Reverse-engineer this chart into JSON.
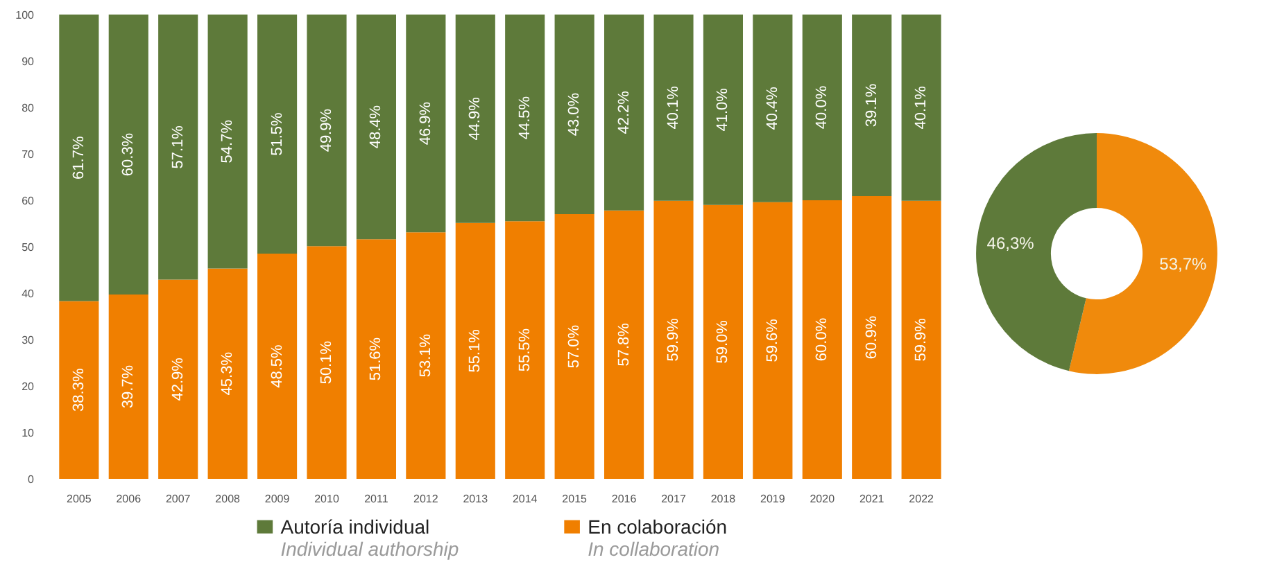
{
  "chart_data": [
    {
      "type": "bar",
      "stacked": true,
      "legend": "bottom",
      "grid": false,
      "ylim": [
        0,
        100
      ],
      "yticks": [
        0,
        10,
        20,
        30,
        40,
        50,
        60,
        70,
        80,
        90,
        100
      ],
      "categories": [
        "2005",
        "2006",
        "2007",
        "2008",
        "2009",
        "2010",
        "2011",
        "2012",
        "2013",
        "2014",
        "2015",
        "2016",
        "2017",
        "2018",
        "2019",
        "2020",
        "2021",
        "2022"
      ],
      "series": [
        {
          "name": "En colaboración\nIn collaboration",
          "color": "#f07f00",
          "values": [
            38.3,
            39.7,
            42.9,
            45.3,
            48.5,
            50.1,
            51.6,
            53.1,
            55.1,
            55.5,
            57.0,
            57.8,
            59.9,
            59.0,
            59.6,
            60.0,
            60.9,
            59.9
          ],
          "value_labels": [
            "38.3%",
            "39.7%",
            "42.9%",
            "45.3%",
            "48.5%",
            "50.1%",
            "51.6%",
            "53.1%",
            "55.1%",
            "55.5%",
            "57.0%",
            "57.8%",
            "59.9%",
            "59.0%",
            "59.6%",
            "60.0%",
            "60.9%",
            "59.9%"
          ]
        },
        {
          "name": "Autoría individual\nIndividual authorship",
          "color": "#5e7a3a",
          "values": [
            61.7,
            60.3,
            57.1,
            54.7,
            51.5,
            49.9,
            48.4,
            46.9,
            44.9,
            44.5,
            43.0,
            42.2,
            40.1,
            41.0,
            40.4,
            40.0,
            39.1,
            40.1
          ],
          "value_labels": [
            "61.7%",
            "60.3%",
            "57.1%",
            "54.7%",
            "51.5%",
            "49.9%",
            "48.4%",
            "46.9%",
            "44.9%",
            "44.5%",
            "43.0%",
            "42.2%",
            "40.1%",
            "41.0%",
            "40.4%",
            "40.0%",
            "39.1%",
            "40.1%"
          ]
        }
      ]
    },
    {
      "type": "donut",
      "categories": [
        null,
        null
      ],
      "values": [
        53.7,
        46.3
      ],
      "colors": [
        "#f08a0c",
        "#5e7a3a"
      ],
      "value_labels": [
        "53,7%",
        "46,3%"
      ]
    }
  ]
}
